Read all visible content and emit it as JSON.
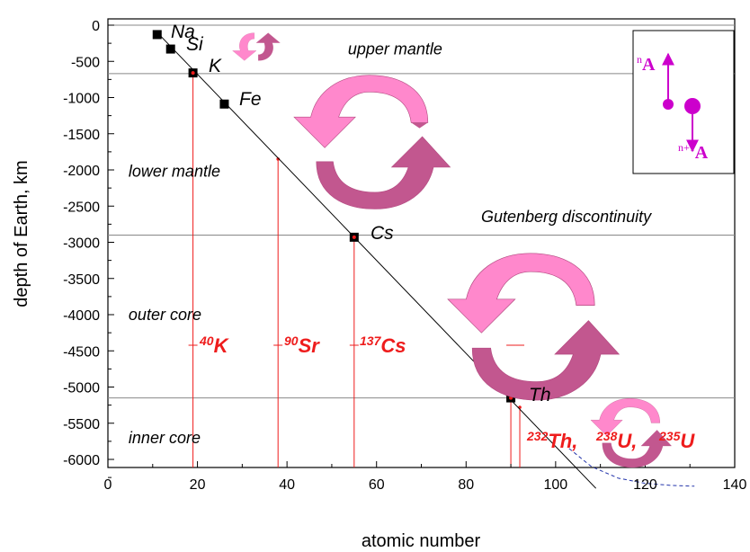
{
  "chart_data": {
    "type": "scatter",
    "xlabel": "atomic number",
    "ylabel": "depth of Earth, km",
    "xlim": [
      0,
      140
    ],
    "ylim": [
      -6400,
      0
    ],
    "xticks": [
      0,
      20,
      40,
      60,
      80,
      100,
      120,
      140
    ],
    "yticks": [
      0,
      -500,
      -1000,
      -1500,
      -2000,
      -2500,
      -3000,
      -3500,
      -4000,
      -4500,
      -5000,
      -5500,
      -6000
    ],
    "grid": false,
    "points": [
      {
        "label": "Na",
        "x": 11,
        "y": -130
      },
      {
        "label": "Si",
        "x": 14,
        "y": -330
      },
      {
        "label": "K",
        "x": 19,
        "y": -660
      },
      {
        "label": "Fe",
        "x": 26,
        "y": -1090
      },
      {
        "label": "Cs",
        "x": 55,
        "y": -2930
      },
      {
        "label": "Th",
        "x": 90,
        "y": -5150
      }
    ],
    "fit_line": {
      "x": [
        11,
        109
      ],
      "y": [
        -100,
        -6400
      ]
    },
    "dashed_curve": {
      "x": [
        103,
        108,
        114,
        120,
        126,
        131
      ],
      "y": [
        -5850,
        -6100,
        -6260,
        -6330,
        -6360,
        -6370
      ]
    },
    "boundaries": [
      {
        "label": "upper mantle",
        "y": -670
      },
      {
        "label": "",
        "y": 0
      },
      {
        "label": "Gutenberg discontinuity",
        "y": -2900
      },
      {
        "label": "",
        "y": -5150
      }
    ],
    "regions": [
      {
        "label": "upper mantle",
        "x": 52,
        "y": -330
      },
      {
        "label": "lower mantle",
        "x": 3,
        "y": -2020
      },
      {
        "label": "outer core",
        "x": 3,
        "y": -4000
      },
      {
        "label": "inner core",
        "x": 3,
        "y": -5700
      }
    ],
    "isotopes": [
      {
        "mass": "40",
        "symbol": "K",
        "x": 19
      },
      {
        "mass": "90",
        "symbol": "Sr",
        "x": 38
      },
      {
        "mass": "137",
        "symbol": "Cs",
        "x": 55
      },
      {
        "mass": "232",
        "symbol": "Th,",
        "x": 90
      },
      {
        "mass": "238",
        "symbol": "U,",
        "x": 92
      },
      {
        "mass": "235",
        "symbol": "U",
        "x": 92
      }
    ],
    "inset": {
      "top": "A",
      "top_sup": "n",
      "bottom": "A",
      "bottom_sup": "n+1"
    },
    "colors": {
      "drop_lines": "#ee1c1c",
      "isotopes": "#ee1c1c",
      "arrow_light": "#ff88cc",
      "arrow_dark": "#c2578f",
      "inset": "#cc00cc",
      "dashed": "#2233aa"
    }
  }
}
